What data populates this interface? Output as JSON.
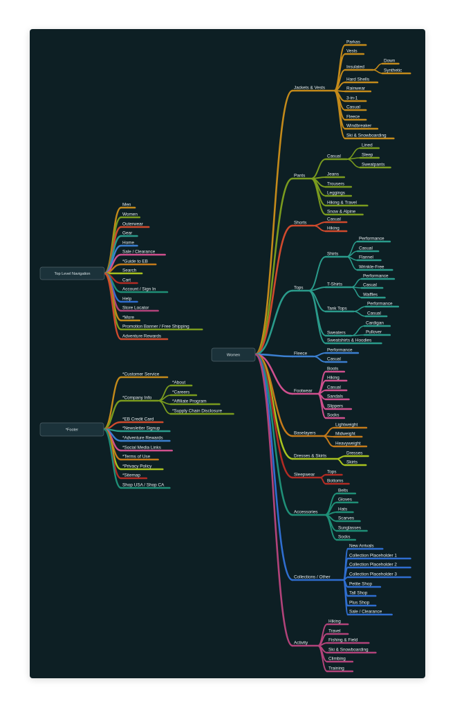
{
  "colors": {
    "background": "#0d1f24",
    "root_box": "#1b323a",
    "root_border": "#51646b",
    "palette": [
      "#c48a1a",
      "#7a9b1e",
      "#d04a2d",
      "#2a9b8b",
      "#3b7fd0",
      "#d0508e",
      "#c47a1a",
      "#a8c21f",
      "#b22c24",
      "#1f8f77",
      "#2f6ed0",
      "#b2437a"
    ]
  },
  "roots": {
    "top_nav": {
      "label": "Top Level Navigation",
      "children": [
        "Men",
        "Women",
        "Outerwear",
        "Gear",
        "Home",
        "Sale / Clearance",
        "*Guide to EB",
        "Search",
        "Cart",
        "Account / Sign In",
        "Help",
        "Store Locator",
        "*More",
        "Promotion Banner / Free Shipping",
        "Adventure Rewards"
      ]
    },
    "footer": {
      "label": "*Footer",
      "children": [
        {
          "label": "*Customer Service"
        },
        {
          "label": "*Company Info",
          "children": [
            "*About",
            "*Careers",
            "*Affiliate Program",
            "*Supply Chain Disclosure"
          ]
        },
        {
          "label": "*EB Credit Card"
        },
        {
          "label": "*Newsletter Signup"
        },
        {
          "label": "*Adventure Rewards"
        },
        {
          "label": "*Social Media Links"
        },
        {
          "label": "*Terms of Use"
        },
        {
          "label": "*Privacy Policy"
        },
        {
          "label": "*Sitemap"
        },
        {
          "label": "Shop USA / Shop CA"
        }
      ]
    },
    "women": {
      "label": "Women",
      "children": [
        {
          "label": "Jackets & Vests",
          "children": [
            {
              "label": "Parkas"
            },
            {
              "label": "Vests"
            },
            {
              "label": "Insulated",
              "children": [
                "Down",
                "Synthetic"
              ]
            },
            {
              "label": "Hard Shells"
            },
            {
              "label": "Rainwear"
            },
            {
              "label": "3-in-1"
            },
            {
              "label": "Casual"
            },
            {
              "label": "Fleece"
            },
            {
              "label": "Windbreaker"
            },
            {
              "label": "Ski & Snowboarding"
            }
          ]
        },
        {
          "label": "Pants",
          "children": [
            {
              "label": "Casual",
              "children": [
                "Lined",
                "Sleep",
                "Sweatpants"
              ]
            },
            {
              "label": "Jeans"
            },
            {
              "label": "Trousers"
            },
            {
              "label": "Leggings"
            },
            {
              "label": "Hiking & Travel"
            },
            {
              "label": "Snow & Alpine"
            }
          ]
        },
        {
          "label": "Shorts",
          "children": [
            {
              "label": "Casual"
            },
            {
              "label": "Hiking"
            }
          ]
        },
        {
          "label": "Tops",
          "children": [
            {
              "label": "Shirts",
              "children": [
                "Performance",
                "Casual",
                "Flannel",
                "Wrinkle-Free"
              ]
            },
            {
              "label": "T-Shirts",
              "children": [
                "Performance",
                "Casual",
                "Waffles"
              ]
            },
            {
              "label": "Tank Tops",
              "children": [
                "Performance",
                "Casual"
              ]
            },
            {
              "label": "Sweaters",
              "children": [
                "Cardigan",
                "Pullover"
              ]
            },
            {
              "label": "Sweatshirts & Hoodies"
            }
          ]
        },
        {
          "label": "Fleece",
          "children": [
            {
              "label": "Performance"
            },
            {
              "label": "Casual"
            }
          ]
        },
        {
          "label": "Footwear",
          "children": [
            {
              "label": "Boots"
            },
            {
              "label": "Hiking"
            },
            {
              "label": "Casual"
            },
            {
              "label": "Sandals"
            },
            {
              "label": "Slippers"
            },
            {
              "label": "Socks"
            }
          ]
        },
        {
          "label": "Baselayers",
          "children": [
            {
              "label": "Lightweight"
            },
            {
              "label": "Midweight"
            },
            {
              "label": "Heavyweight"
            }
          ]
        },
        {
          "label": "Dresses & Skirts",
          "children": [
            {
              "label": "Dresses"
            },
            {
              "label": "Skirts"
            }
          ]
        },
        {
          "label": "Sleepwear",
          "children": [
            {
              "label": "Tops"
            },
            {
              "label": "Bottoms"
            }
          ]
        },
        {
          "label": "Accessories",
          "children": [
            {
              "label": "Belts"
            },
            {
              "label": "Gloves"
            },
            {
              "label": "Hats"
            },
            {
              "label": "Scarves"
            },
            {
              "label": "Sunglasses"
            },
            {
              "label": "Socks"
            }
          ]
        },
        {
          "label": "Collections / Other",
          "children": [
            {
              "label": "New Arrivals"
            },
            {
              "label": "Collection Placeholder 1"
            },
            {
              "label": "Collection Placeholder 2"
            },
            {
              "label": "Collection Placeholder 3"
            },
            {
              "label": "Petite Shop"
            },
            {
              "label": "Tall Shop"
            },
            {
              "label": "Plus Shop"
            },
            {
              "label": "Sale / Clearance"
            }
          ]
        },
        {
          "label": "Activity",
          "children": [
            {
              "label": "Hiking"
            },
            {
              "label": "Travel"
            },
            {
              "label": "Fishing & Field"
            },
            {
              "label": "Ski & Snowboarding"
            },
            {
              "label": "Climbing"
            },
            {
              "label": "Training"
            }
          ]
        }
      ]
    }
  }
}
